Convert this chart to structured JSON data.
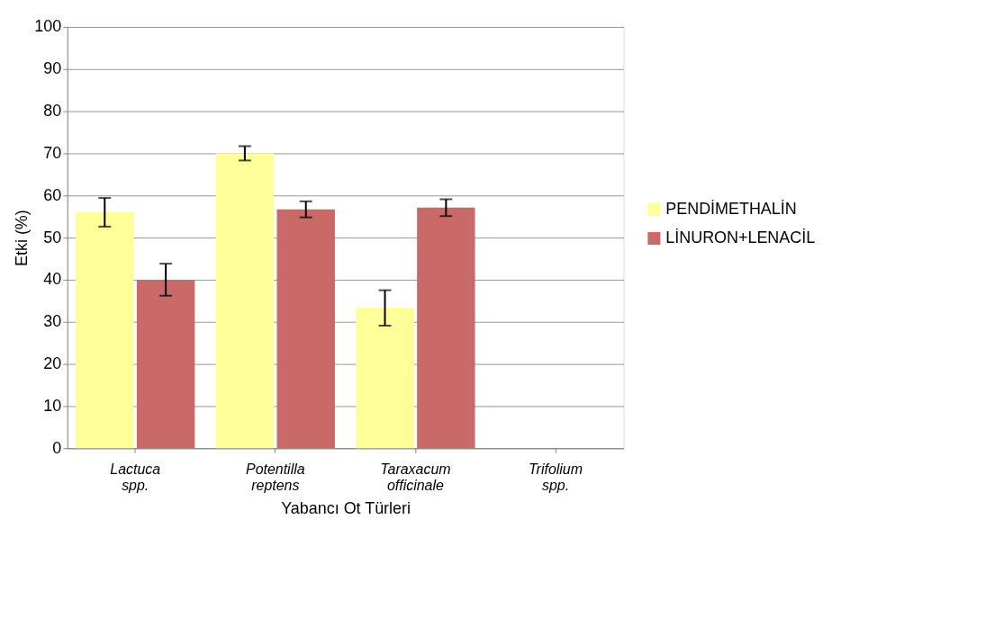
{
  "chart_data": {
    "type": "bar",
    "xlabel": "Yabancı Ot Türleri",
    "ylabel": "Etki (%)",
    "categories": [
      "Lactuca spp.",
      "Potentilla reptens",
      "Taraxacum officinale",
      "Trifolium spp."
    ],
    "series": [
      {
        "name": "PENDİMETHALİN",
        "color": "#ffff99",
        "values": [
          56,
          70,
          33.3,
          0
        ],
        "errors": [
          3.4,
          1.7,
          4.2,
          null
        ]
      },
      {
        "name": "LİNURON+LENACİL",
        "color": "#c96a68",
        "values": [
          40,
          56.7,
          57.1,
          0
        ],
        "errors": [
          3.8,
          1.9,
          2,
          null
        ]
      }
    ],
    "ylim": [
      0,
      100
    ],
    "yticks": [
      0,
      10,
      20,
      30,
      40,
      50,
      60,
      70,
      80,
      90,
      100
    ],
    "grid": "y",
    "legend": "right"
  }
}
